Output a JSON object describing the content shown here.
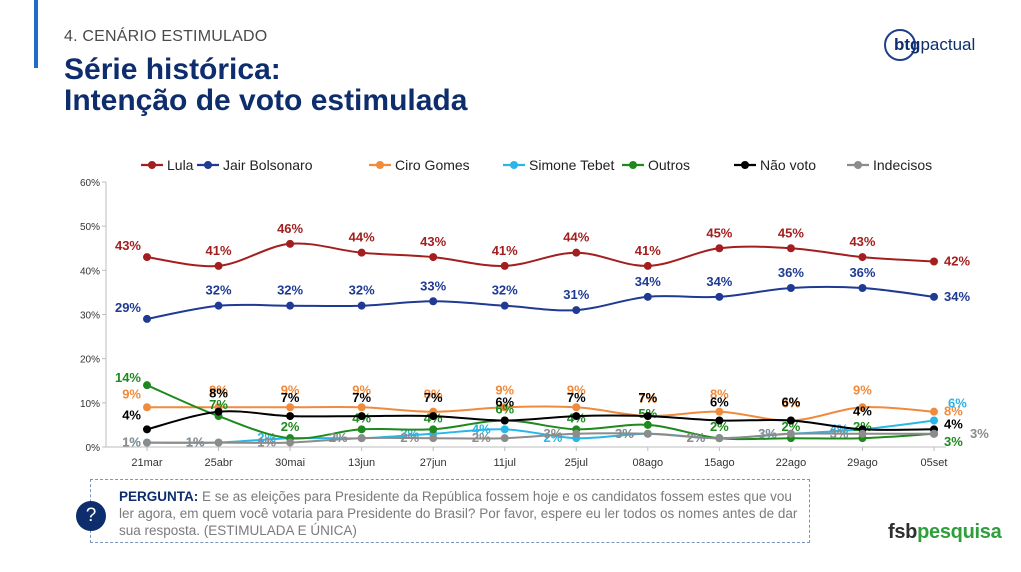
{
  "header": {
    "section": "4. CENÁRIO ESTIMULADO",
    "title_line1": "Série histórica:",
    "title_line2": "Intenção de voto estimulada",
    "logo_btg_bold": "btg",
    "logo_btg_rest": "pactual"
  },
  "question": {
    "label": "PERGUNTA:",
    "text": " E se as eleições para Presidente da República fossem hoje e os candidatos fossem estes que vou ler agora, em quem você votaria para Presidente do Brasil? Por favor, espere eu ler todos os nomes antes de dar sua resposta. (ESTIMULADA E ÚNICA)",
    "icon": "?"
  },
  "footer": {
    "logo_fsb_a": "fsb",
    "logo_fsb_b": "pesquisa"
  },
  "chart_data": {
    "type": "line",
    "categories": [
      "21mar",
      "25abr",
      "30mai",
      "13jun",
      "27jun",
      "11jul",
      "25jul",
      "08ago",
      "15ago",
      "22ago",
      "29ago",
      "05set"
    ],
    "yticks": [
      "0%",
      "10%",
      "20%",
      "30%",
      "40%",
      "50%",
      "60%"
    ],
    "ylim": [
      0,
      60
    ],
    "legend_position": "top",
    "series": [
      {
        "name": "Lula",
        "color": "#a31f1f",
        "values": [
          43,
          41,
          46,
          44,
          43,
          41,
          44,
          41,
          45,
          45,
          43,
          42
        ]
      },
      {
        "name": "Jair Bolsonaro",
        "color": "#1f3a93",
        "values": [
          29,
          32,
          32,
          32,
          33,
          32,
          31,
          34,
          34,
          36,
          36,
          34
        ]
      },
      {
        "name": "Ciro Gomes",
        "color": "#f08a3c",
        "values": [
          9,
          9,
          9,
          9,
          8,
          9,
          9,
          7,
          8,
          6,
          9,
          8
        ]
      },
      {
        "name": "Simone Tebet",
        "color": "#29b6e8",
        "values": [
          1,
          1,
          2,
          2,
          3,
          4,
          2,
          3,
          2,
          3,
          4,
          6
        ]
      },
      {
        "name": "Outros",
        "color": "#1e8a1e",
        "values": [
          14,
          7,
          2,
          4,
          4,
          6,
          4,
          5,
          2,
          2,
          2,
          3
        ]
      },
      {
        "name": "Não voto",
        "color": "#000000",
        "values": [
          4,
          8,
          7,
          7,
          7,
          6,
          7,
          7,
          6,
          6,
          4,
          4
        ]
      },
      {
        "name": "Indecisos",
        "color": "#8c8c8c",
        "values": [
          1,
          1,
          1,
          2,
          2,
          2,
          3,
          3,
          2,
          3,
          3,
          3
        ]
      }
    ]
  }
}
